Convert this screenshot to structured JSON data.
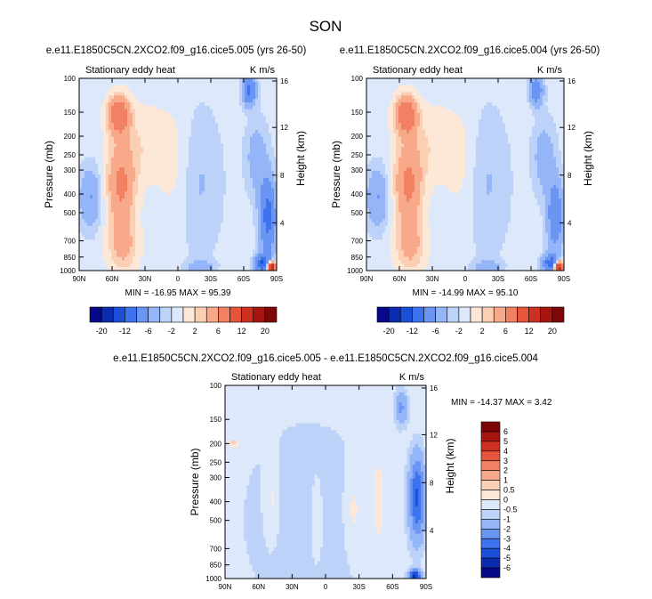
{
  "page_title": "SON",
  "colors": {
    "neg": [
      "#08088a",
      "#0b2bb0",
      "#1c4fd8",
      "#3e73ee",
      "#6a95f3",
      "#94b5f7",
      "#bcd2f8",
      "#dde9fb"
    ],
    "pos": [
      "#fde8d8",
      "#fbcfb4",
      "#f7a98a",
      "#f28062",
      "#e5553a",
      "#cc3020",
      "#a8140f",
      "#7d0606"
    ],
    "diff_neg": [
      "#08088a",
      "#0b2bb0",
      "#1c4fd8",
      "#3e73ee",
      "#6a95f3",
      "#94b5f7",
      "#bcd2f8",
      "#dde9fb"
    ],
    "diff_pos": [
      "#fde8d8",
      "#fbcfb4",
      "#f7a98a",
      "#f28062",
      "#e5553a",
      "#cc3020",
      "#a8140f",
      "#7d0606"
    ]
  },
  "chart_data": [
    {
      "type": "heatmap",
      "title": "e.e11.E1850C5CN.2XCO2.f09_g16.cice5.005 (yrs 26-50)",
      "left_label": "Stationary eddy heat",
      "right_label": "K m/s",
      "ylabel": "Pressure (mb)",
      "y2label": "Height (km)",
      "x_ticks": [
        "90N",
        "60N",
        "30N",
        "0",
        "30S",
        "60S",
        "90S"
      ],
      "x_range": [
        90,
        -90
      ],
      "p_ticks": [
        100,
        150,
        200,
        250,
        300,
        400,
        500,
        700,
        850,
        1000
      ],
      "p_range": [
        100,
        1000
      ],
      "h_ticks": [
        16,
        12,
        8,
        4
      ],
      "min_max": "MIN = -16.95  MAX =  95.39",
      "features": [
        {
          "lat": 54,
          "p": 155,
          "dlat": 7,
          "dlogp": 0.16,
          "amp": 7
        },
        {
          "lat": 52,
          "p": 360,
          "dlat": 9,
          "dlogp": 0.35,
          "amp": 5
        },
        {
          "lat": 50,
          "p": 750,
          "dlat": 10,
          "dlogp": 0.22,
          "amp": 3
        },
        {
          "lat": 30,
          "p": 220,
          "dlat": 18,
          "dlogp": 0.35,
          "amp": 1.4
        },
        {
          "lat": 80,
          "p": 420,
          "dlat": 7,
          "dlogp": 0.25,
          "amp": -3.5
        },
        {
          "lat": 2,
          "p": 300,
          "dlat": 10,
          "dlogp": 0.5,
          "amp": 0.9
        },
        {
          "lat": -20,
          "p": 350,
          "dlat": 14,
          "dlogp": 0.6,
          "amp": -1.5
        },
        {
          "lat": -20,
          "p": 960,
          "dlat": 8,
          "dlogp": 0.05,
          "amp": -3
        },
        {
          "lat": -65,
          "p": 115,
          "dlat": 4,
          "dlogp": 0.12,
          "amp": -8
        },
        {
          "lat": -72,
          "p": 260,
          "dlat": 7,
          "dlogp": 0.3,
          "amp": -2.5
        },
        {
          "lat": -82,
          "p": 520,
          "dlat": 5,
          "dlogp": 0.3,
          "amp": -9
        },
        {
          "lat": -78,
          "p": 920,
          "dlat": 5,
          "dlogp": 0.07,
          "amp": -12
        },
        {
          "lat": -85,
          "p": 960,
          "dlat": 3,
          "dlogp": 0.05,
          "amp": 20
        }
      ]
    },
    {
      "type": "heatmap",
      "title": "e.e11.E1850C5CN.2XCO2.f09_g16.cice5.004 (yrs 26-50)",
      "left_label": "Stationary eddy heat",
      "right_label": "K m/s",
      "ylabel": "Pressure (mb)",
      "y2label": "Height (km)",
      "x_ticks": [
        "90N",
        "60N",
        "30N",
        "0",
        "30S",
        "60S",
        "90S"
      ],
      "x_range": [
        90,
        -90
      ],
      "p_ticks": [
        100,
        150,
        200,
        250,
        300,
        400,
        500,
        700,
        850,
        1000
      ],
      "p_range": [
        100,
        1000
      ],
      "h_ticks": [
        16,
        12,
        8,
        4
      ],
      "min_max": "MIN = -14.99  MAX =  95.10",
      "features": [
        {
          "lat": 54,
          "p": 155,
          "dlat": 7,
          "dlogp": 0.16,
          "amp": 7
        },
        {
          "lat": 52,
          "p": 360,
          "dlat": 9,
          "dlogp": 0.35,
          "amp": 5
        },
        {
          "lat": 50,
          "p": 750,
          "dlat": 10,
          "dlogp": 0.22,
          "amp": 3
        },
        {
          "lat": 30,
          "p": 220,
          "dlat": 18,
          "dlogp": 0.35,
          "amp": 1.4
        },
        {
          "lat": 80,
          "p": 420,
          "dlat": 7,
          "dlogp": 0.25,
          "amp": -3.5
        },
        {
          "lat": 2,
          "p": 300,
          "dlat": 10,
          "dlogp": 0.5,
          "amp": 0.9
        },
        {
          "lat": -20,
          "p": 350,
          "dlat": 14,
          "dlogp": 0.6,
          "amp": -1.5
        },
        {
          "lat": -20,
          "p": 960,
          "dlat": 8,
          "dlogp": 0.05,
          "amp": -3
        },
        {
          "lat": -65,
          "p": 115,
          "dlat": 4,
          "dlogp": 0.12,
          "amp": -6
        },
        {
          "lat": -72,
          "p": 260,
          "dlat": 7,
          "dlogp": 0.3,
          "amp": -2.5
        },
        {
          "lat": -82,
          "p": 520,
          "dlat": 5,
          "dlogp": 0.3,
          "amp": -6
        },
        {
          "lat": -78,
          "p": 920,
          "dlat": 5,
          "dlogp": 0.07,
          "amp": -10
        },
        {
          "lat": -85,
          "p": 960,
          "dlat": 3,
          "dlogp": 0.05,
          "amp": 18
        }
      ]
    },
    {
      "type": "heatmap",
      "title": "e.e11.E1850C5CN.2XCO2.f09_g16.cice5.005 - e.e11.E1850C5CN.2XCO2.f09_g16.cice5.004",
      "left_label": "Stationary eddy heat",
      "right_label": "K m/s",
      "ylabel": "Pressure (mb)",
      "y2label": "Height (km)",
      "x_ticks": [
        "90N",
        "60N",
        "30N",
        "0",
        "30S",
        "60S",
        "90S"
      ],
      "x_range": [
        90,
        -90
      ],
      "p_ticks": [
        100,
        150,
        200,
        250,
        300,
        400,
        500,
        700,
        850,
        1000
      ],
      "p_range": [
        100,
        1000
      ],
      "h_ticks": [
        16,
        12,
        8,
        4
      ],
      "min_max": "MIN = -14.37  MAX =   3.42",
      "features": [
        {
          "lat": 15,
          "p": 500,
          "dlat": 60,
          "dlogp": 1.2,
          "amp": -0.8
        },
        {
          "lat": 48,
          "p": 400,
          "dlat": 5,
          "dlogp": 0.35,
          "amp": 0.7
        },
        {
          "lat": 8,
          "p": 500,
          "dlat": 4,
          "dlogp": 0.35,
          "amp": 0.7
        },
        {
          "lat": -25,
          "p": 450,
          "dlat": 6,
          "dlogp": 0.35,
          "amp": 0.7
        },
        {
          "lat": -47,
          "p": 400,
          "dlat": 5,
          "dlogp": 0.4,
          "amp": 0.7
        },
        {
          "lat": 82,
          "p": 200,
          "dlat": 3,
          "dlogp": 0.03,
          "amp": 1.2
        },
        {
          "lat": -68,
          "p": 130,
          "dlat": 4,
          "dlogp": 0.15,
          "amp": -2
        },
        {
          "lat": -82,
          "p": 380,
          "dlat": 5,
          "dlogp": 0.35,
          "amp": -4
        },
        {
          "lat": -80,
          "p": 970,
          "dlat": 4,
          "dlogp": 0.05,
          "amp": -5
        }
      ]
    }
  ],
  "colorbars": [
    {
      "orientation": "horizontal",
      "labels": [
        "-20",
        "-12",
        "-6",
        "-2",
        "2",
        "6",
        "12",
        "20"
      ]
    },
    {
      "orientation": "horizontal",
      "labels": [
        "-20",
        "-12",
        "-6",
        "-2",
        "2",
        "6",
        "12",
        "20"
      ]
    },
    {
      "orientation": "vertical",
      "labels": [
        "6",
        "5",
        "4",
        "3",
        "2",
        "1",
        "0.5",
        "0",
        "-0.5",
        "-1",
        "-2",
        "-3",
        "-4",
        "-5",
        "-6"
      ]
    }
  ]
}
